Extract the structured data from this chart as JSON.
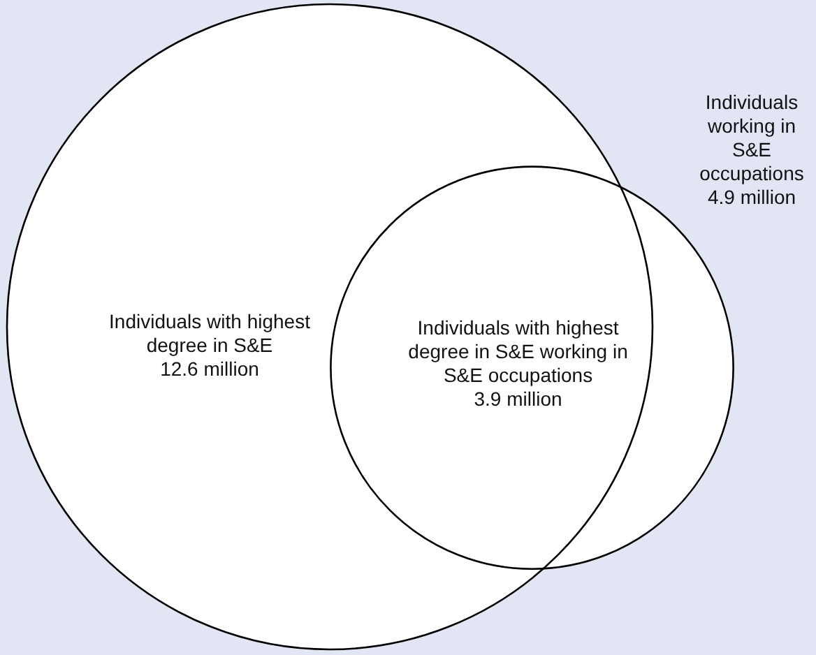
{
  "chart_data": {
    "type": "other",
    "categories": [
      "Individuals with highest degree in S&E",
      "Individuals working in S&E occupations",
      "Individuals with highest degree in S&E working in S&E occupations"
    ],
    "values": [
      12.6,
      4.9,
      3.9
    ],
    "value_labels": [
      "12.6 million",
      "4.9 million",
      "3.9 million"
    ]
  }
}
